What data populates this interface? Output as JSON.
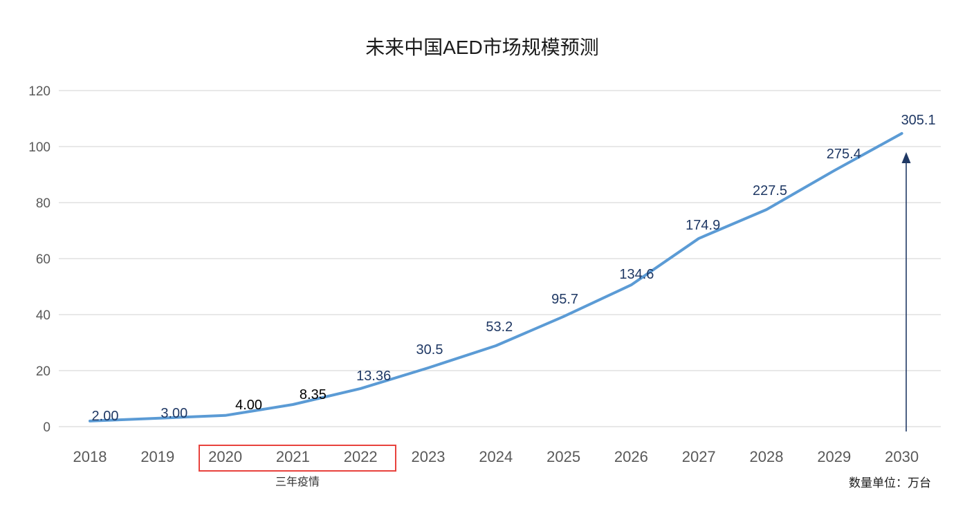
{
  "page": {
    "title": "未来中国AED市场规模预测",
    "unit_note": "数量单位：万台",
    "pandemic_note": "三年疫情"
  },
  "colors": {
    "line": "#5B9BD5",
    "data_label": "#1F3864",
    "data_label_black": "#000000",
    "axis_text": "#595959",
    "gridline": "#D9D9D9",
    "highlight_box": "#E8413C",
    "arrow": "#1F3864",
    "title_text": "#1A1A1A",
    "note_text": "#333333",
    "unit_text": "#1A1A1A"
  },
  "chart_data": {
    "type": "line",
    "title": "未来中国AED市场规模预测",
    "categories": [
      "2018",
      "2019",
      "2020",
      "2021",
      "2022",
      "2023",
      "2024",
      "2025",
      "2026",
      "2027",
      "2028",
      "2029",
      "2030"
    ],
    "series": [
      {
        "name": "中国AED市场规模预测（万台）",
        "values": [
          2.0,
          3.0,
          4.0,
          8.35,
          13.36,
          30.5,
          53.2,
          95.7,
          134.6,
          174.9,
          227.5,
          275.4,
          305.1
        ]
      }
    ],
    "data_labels": [
      "2.00",
      "3.00",
      "4.00",
      "8.35",
      "13.36",
      "30.5",
      "53.2",
      "95.7",
      "134.6",
      "174.9",
      "227.5",
      "275.4",
      "305.1"
    ],
    "data_label_styles": [
      "navy",
      "navy",
      "black",
      "black",
      "navy",
      "navy",
      "navy",
      "navy",
      "navy",
      "navy",
      "navy",
      "navy",
      "navy"
    ],
    "plotted_axis_values": [
      2.0,
      3.0,
      4.0,
      7.9,
      13.6,
      21.0,
      28.9,
      39.3,
      50.6,
      67.2,
      77.5,
      91.4,
      104.7
    ],
    "xlabel": "",
    "ylabel": "",
    "ylim": [
      0,
      120
    ],
    "y_ticks": [
      0,
      20,
      40,
      60,
      80,
      100,
      120
    ],
    "grid": "horizontal",
    "legend_position": "none",
    "unit": "万台",
    "highlight": {
      "categories": [
        "2020",
        "2021",
        "2022"
      ],
      "label": "三年疫情"
    },
    "annotations": [
      {
        "type": "arrow-up",
        "at_category": "2030",
        "color": "navy"
      }
    ]
  }
}
